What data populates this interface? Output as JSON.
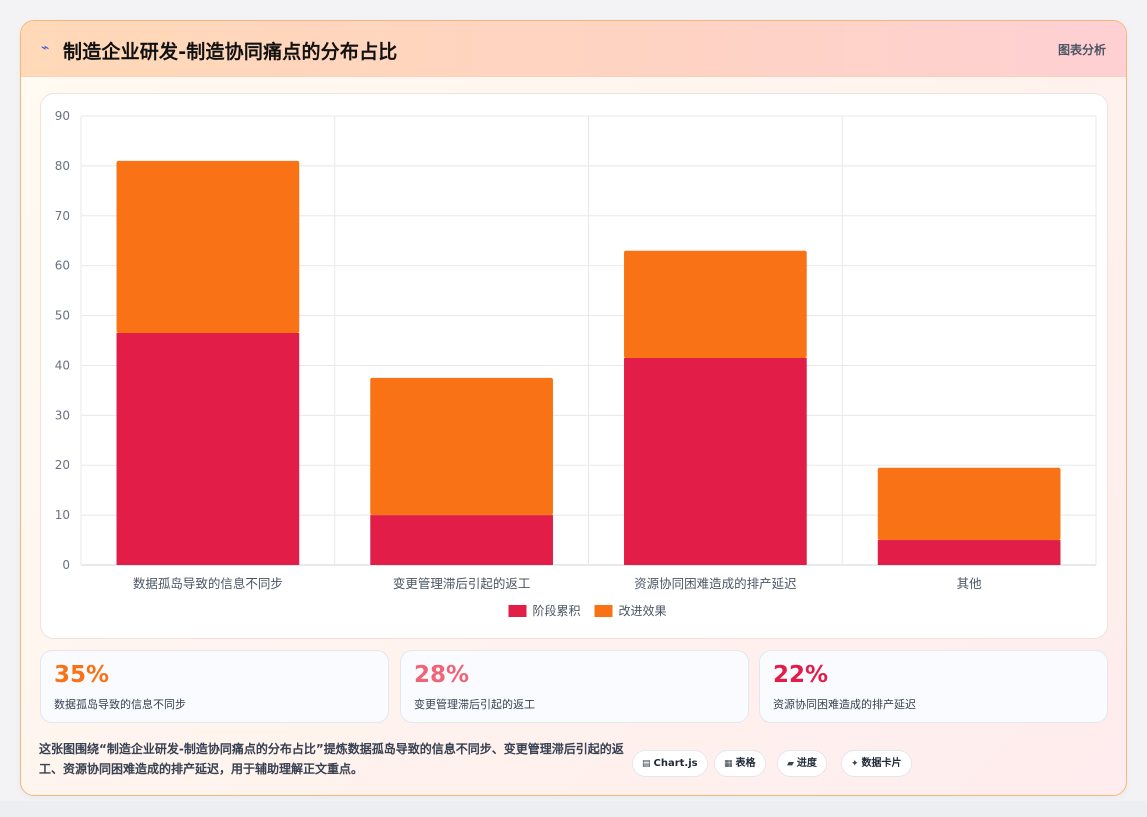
{
  "header": {
    "logo_glyph": "⌁",
    "title": "制造企业研发-制造协同痛点的分布占比",
    "tag": "图表分析"
  },
  "chart_data": {
    "type": "bar",
    "stacked": true,
    "categories": [
      "数据孤岛导致的信息不同步",
      "变更管理滞后引起的返工",
      "资源协同困难造成的排产延迟",
      "其他"
    ],
    "series": [
      {
        "name": "阶段累积",
        "values": [
          46.5,
          10,
          41.5,
          5
        ],
        "color": "#e11d48"
      },
      {
        "name": "改进效果",
        "values": [
          34.5,
          27.5,
          21.5,
          14.5
        ],
        "color": "#f97316"
      }
    ],
    "ylim": [
      0,
      90
    ],
    "yticks": [
      0,
      10,
      20,
      30,
      40,
      50,
      60,
      70,
      80,
      90
    ],
    "grid": true,
    "legend_position": "bottom"
  },
  "stats": [
    {
      "value": "35%",
      "label": "数据孤岛导致的信息不同步",
      "color": "#f97316"
    },
    {
      "value": "28%",
      "label": "变更管理滞后引起的返工",
      "color": "#f06478"
    },
    {
      "value": "22%",
      "label": "资源协同困难造成的排产延迟",
      "color": "#e11d48"
    }
  ],
  "footnote": "这张图围绕“制造企业研发-制造协同痛点的分布占比”提炼数据孤岛导致的信息不同步、变更管理滞后引起的返工、资源协同困难造成的排产延迟，用于辅助理解正文重点。",
  "chips": [
    {
      "icon": "▤",
      "icon_name": "chart-icon",
      "label": "Chart.js"
    },
    {
      "icon": "▦",
      "icon_name": "table-icon",
      "label": "表格"
    },
    {
      "icon": "▰",
      "icon_name": "progress-icon",
      "label": "进度"
    },
    {
      "icon": "✦",
      "icon_name": "sparkle-icon",
      "label": "数据卡片"
    }
  ]
}
